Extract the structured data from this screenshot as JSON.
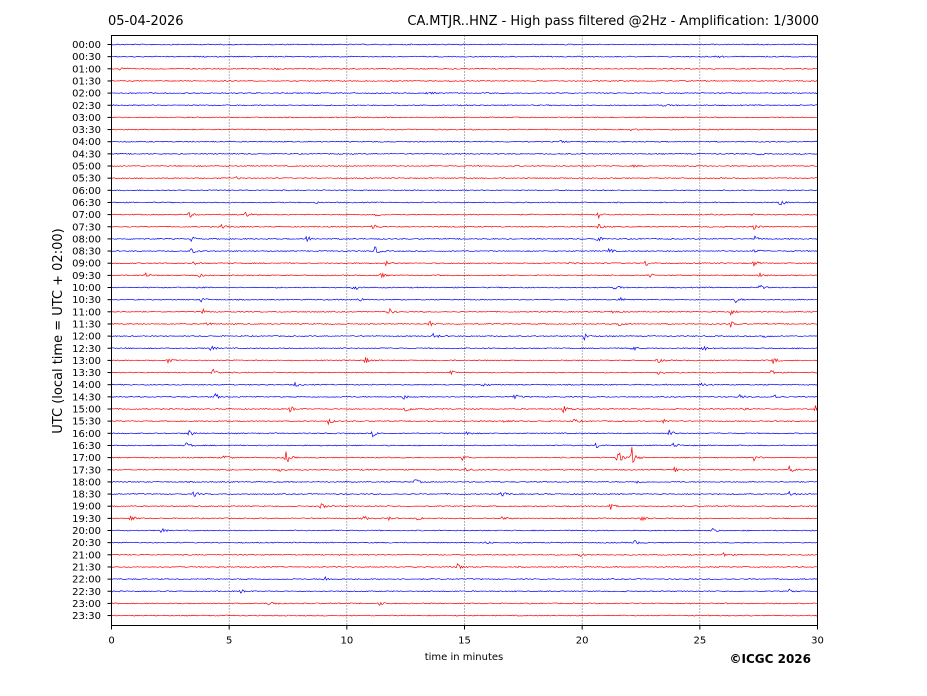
{
  "header": {
    "date": "05-04-2026",
    "title": "CA.MTJR..HNZ - High pass filtered @2Hz - Amplification: 1/3000"
  },
  "footer": {
    "copyright": "©ICGC 2026"
  },
  "chart_data": {
    "type": "line",
    "subtype": "helicorder",
    "xlabel": "time in minutes",
    "ylabel": "UTC (local time = UTC + 02:00)",
    "xlim": [
      0,
      30
    ],
    "x_ticks": [
      0,
      5,
      10,
      15,
      20,
      25,
      30
    ],
    "vertical_gridlines_at": [
      5,
      10,
      15,
      20,
      25
    ],
    "grid_style": "dotted",
    "trace_colors": [
      "#0000ff",
      "#ff0000"
    ],
    "color_pattern": "alternates blue/red by hour",
    "rows": [
      {
        "label": "00:00",
        "color": "#0000ff",
        "events": []
      },
      {
        "label": "00:30",
        "color": "#0000ff",
        "events": [
          {
            "t": 25.7,
            "a": 0.25
          }
        ]
      },
      {
        "label": "01:00",
        "color": "#ff0000",
        "events": [
          {
            "t": 0.3,
            "a": 0.35
          },
          {
            "t": 7.0,
            "a": 0.2
          }
        ]
      },
      {
        "label": "01:30",
        "color": "#ff0000",
        "events": []
      },
      {
        "label": "02:00",
        "color": "#0000ff",
        "events": [
          {
            "t": 13.4,
            "a": 0.35
          }
        ]
      },
      {
        "label": "02:30",
        "color": "#0000ff",
        "events": [
          {
            "t": 23.5,
            "a": 0.3
          }
        ]
      },
      {
        "label": "03:00",
        "color": "#ff0000",
        "events": []
      },
      {
        "label": "03:30",
        "color": "#ff0000",
        "events": [
          {
            "t": 22.1,
            "a": 0.2
          }
        ]
      },
      {
        "label": "04:00",
        "color": "#0000ff",
        "events": [
          {
            "t": 19.1,
            "a": 0.3
          }
        ]
      },
      {
        "label": "04:30",
        "color": "#0000ff",
        "events": [
          {
            "t": 27.5,
            "a": 0.2
          }
        ]
      },
      {
        "label": "05:00",
        "color": "#ff0000",
        "events": [
          {
            "t": 22.2,
            "a": 0.15
          }
        ]
      },
      {
        "label": "05:30",
        "color": "#ff0000",
        "events": [
          {
            "t": 5.3,
            "a": 0.2
          }
        ]
      },
      {
        "label": "06:00",
        "color": "#0000ff",
        "events": []
      },
      {
        "label": "06:30",
        "color": "#0000ff",
        "events": [
          {
            "t": 8.6,
            "a": 0.2
          },
          {
            "t": 28.4,
            "a": 0.7
          }
        ]
      },
      {
        "label": "07:00",
        "color": "#ff0000",
        "events": [
          {
            "t": 3.3,
            "a": 0.5
          },
          {
            "t": 5.7,
            "a": 0.5
          },
          {
            "t": 11.2,
            "a": 0.55
          },
          {
            "t": 20.7,
            "a": 0.5
          },
          {
            "t": 27.1,
            "a": 0.5
          }
        ]
      },
      {
        "label": "07:30",
        "color": "#ff0000",
        "events": [
          {
            "t": 4.7,
            "a": 0.45
          },
          {
            "t": 11.1,
            "a": 0.6
          },
          {
            "t": 20.7,
            "a": 0.5
          },
          {
            "t": 27.3,
            "a": 0.55
          }
        ]
      },
      {
        "label": "08:00",
        "color": "#0000ff",
        "events": [
          {
            "t": 3.4,
            "a": 0.45
          },
          {
            "t": 8.3,
            "a": 0.55
          },
          {
            "t": 20.6,
            "a": 0.6
          },
          {
            "t": 27.3,
            "a": 0.55
          }
        ]
      },
      {
        "label": "08:30",
        "color": "#0000ff",
        "events": [
          {
            "t": 3.4,
            "a": 0.5
          },
          {
            "t": 11.2,
            "a": 0.75
          },
          {
            "t": 21.1,
            "a": 0.55
          },
          {
            "t": 27.3,
            "a": 0.55
          }
        ]
      },
      {
        "label": "09:00",
        "color": "#ff0000",
        "events": [
          {
            "t": 3.5,
            "a": 0.4
          },
          {
            "t": 11.7,
            "a": 0.6
          },
          {
            "t": 19.5,
            "a": 0.35
          },
          {
            "t": 22.7,
            "a": 0.5
          },
          {
            "t": 27.3,
            "a": 0.5
          }
        ]
      },
      {
        "label": "09:30",
        "color": "#ff0000",
        "events": [
          {
            "t": 1.4,
            "a": 0.6
          },
          {
            "t": 3.7,
            "a": 0.4
          },
          {
            "t": 11.4,
            "a": 0.6
          },
          {
            "t": 22.8,
            "a": 0.5
          },
          {
            "t": 27.5,
            "a": 0.5
          }
        ]
      },
      {
        "label": "10:00",
        "color": "#0000ff",
        "events": [
          {
            "t": 3.7,
            "a": 0.4
          },
          {
            "t": 10.3,
            "a": 0.55
          },
          {
            "t": 21.4,
            "a": 0.55
          },
          {
            "t": 27.5,
            "a": 0.6
          }
        ]
      },
      {
        "label": "10:30",
        "color": "#0000ff",
        "events": [
          {
            "t": 3.8,
            "a": 0.45
          },
          {
            "t": 10.5,
            "a": 0.5
          },
          {
            "t": 21.6,
            "a": 0.4
          },
          {
            "t": 26.5,
            "a": 0.55
          }
        ]
      },
      {
        "label": "11:00",
        "color": "#ff0000",
        "events": [
          {
            "t": 3.9,
            "a": 0.4
          },
          {
            "t": 11.8,
            "a": 0.55
          },
          {
            "t": 21.3,
            "a": 0.4
          },
          {
            "t": 26.3,
            "a": 0.55
          }
        ]
      },
      {
        "label": "11:30",
        "color": "#ff0000",
        "events": [
          {
            "t": 4.0,
            "a": 0.45
          },
          {
            "t": 13.5,
            "a": 0.55
          },
          {
            "t": 21.6,
            "a": 0.55
          },
          {
            "t": 26.3,
            "a": 0.55
          }
        ]
      },
      {
        "label": "12:00",
        "color": "#0000ff",
        "events": [
          {
            "t": 13.7,
            "a": 0.6
          },
          {
            "t": 20.1,
            "a": 0.6
          },
          {
            "t": 27.7,
            "a": 0.45
          }
        ]
      },
      {
        "label": "12:30",
        "color": "#0000ff",
        "events": [
          {
            "t": 4.2,
            "a": 0.45
          },
          {
            "t": 22.1,
            "a": 0.6
          },
          {
            "t": 25.1,
            "a": 0.6
          }
        ]
      },
      {
        "label": "13:00",
        "color": "#ff0000",
        "events": [
          {
            "t": 2.4,
            "a": 0.4
          },
          {
            "t": 10.8,
            "a": 0.5
          },
          {
            "t": 23.2,
            "a": 0.55
          },
          {
            "t": 28.1,
            "a": 0.6
          }
        ]
      },
      {
        "label": "13:30",
        "color": "#ff0000",
        "events": [
          {
            "t": 4.3,
            "a": 0.55
          },
          {
            "t": 14.4,
            "a": 0.6
          },
          {
            "t": 23.2,
            "a": 0.55
          },
          {
            "t": 28.0,
            "a": 0.55
          }
        ]
      },
      {
        "label": "14:00",
        "color": "#0000ff",
        "events": [
          {
            "t": 7.8,
            "a": 0.4
          },
          {
            "t": 15.8,
            "a": 0.5
          },
          {
            "t": 25.0,
            "a": 0.6
          }
        ]
      },
      {
        "label": "14:30",
        "color": "#0000ff",
        "events": [
          {
            "t": 4.4,
            "a": 0.55
          },
          {
            "t": 12.4,
            "a": 0.45
          },
          {
            "t": 17.1,
            "a": 0.55
          },
          {
            "t": 26.7,
            "a": 0.45
          },
          {
            "t": 28.1,
            "a": 0.6
          }
        ]
      },
      {
        "label": "15:00",
        "color": "#ff0000",
        "events": [
          {
            "t": 7.6,
            "a": 0.55
          },
          {
            "t": 12.5,
            "a": 0.55
          },
          {
            "t": 19.2,
            "a": 0.55
          },
          {
            "t": 26.8,
            "a": 0.55
          },
          {
            "t": 29.9,
            "a": 0.6
          }
        ]
      },
      {
        "label": "15:30",
        "color": "#ff0000",
        "events": [
          {
            "t": 9.2,
            "a": 0.55
          },
          {
            "t": 16.7,
            "a": 0.45
          },
          {
            "t": 19.6,
            "a": 0.55
          },
          {
            "t": 23.4,
            "a": 0.45
          }
        ]
      },
      {
        "label": "16:00",
        "color": "#0000ff",
        "events": [
          {
            "t": 3.3,
            "a": 0.6
          },
          {
            "t": 11.1,
            "a": 0.5
          },
          {
            "t": 15.1,
            "a": 0.45
          },
          {
            "t": 23.7,
            "a": 0.55
          }
        ]
      },
      {
        "label": "16:30",
        "color": "#0000ff",
        "events": [
          {
            "t": 3.2,
            "a": 0.6
          },
          {
            "t": 20.6,
            "a": 0.55
          },
          {
            "t": 23.9,
            "a": 0.55
          }
        ]
      },
      {
        "label": "17:00",
        "color": "#ff0000",
        "events": [
          {
            "t": 4.8,
            "a": 0.55
          },
          {
            "t": 7.4,
            "a": 1.2
          },
          {
            "t": 14.9,
            "a": 0.45
          },
          {
            "t": 21.5,
            "a": 1.6
          },
          {
            "t": 22.1,
            "a": 1.9
          },
          {
            "t": 27.3,
            "a": 0.5
          }
        ]
      },
      {
        "label": "17:30",
        "color": "#ff0000",
        "events": [
          {
            "t": 7.1,
            "a": 0.6
          },
          {
            "t": 15.0,
            "a": 0.5
          },
          {
            "t": 23.9,
            "a": 0.55
          },
          {
            "t": 28.8,
            "a": 0.55
          }
        ]
      },
      {
        "label": "18:00",
        "color": "#0000ff",
        "events": [
          {
            "t": 12.9,
            "a": 0.5
          },
          {
            "t": 22.3,
            "a": 0.45
          }
        ]
      },
      {
        "label": "18:30",
        "color": "#0000ff",
        "events": [
          {
            "t": 3.5,
            "a": 0.45
          },
          {
            "t": 16.6,
            "a": 0.6
          },
          {
            "t": 28.8,
            "a": 0.55
          }
        ]
      },
      {
        "label": "19:00",
        "color": "#ff0000",
        "events": [
          {
            "t": 8.9,
            "a": 0.5
          },
          {
            "t": 21.2,
            "a": 0.55
          }
        ]
      },
      {
        "label": "19:30",
        "color": "#ff0000",
        "events": [
          {
            "t": 0.8,
            "a": 0.6
          },
          {
            "t": 10.7,
            "a": 0.5
          },
          {
            "t": 11.7,
            "a": 0.5
          },
          {
            "t": 13.0,
            "a": 0.4
          },
          {
            "t": 16.6,
            "a": 0.45
          },
          {
            "t": 22.5,
            "a": 0.55
          }
        ]
      },
      {
        "label": "20:00",
        "color": "#0000ff",
        "events": [
          {
            "t": 2.1,
            "a": 0.4
          },
          {
            "t": 25.5,
            "a": 0.4
          }
        ]
      },
      {
        "label": "20:30",
        "color": "#0000ff",
        "events": [
          {
            "t": 15.9,
            "a": 0.3
          },
          {
            "t": 22.2,
            "a": 0.45
          }
        ]
      },
      {
        "label": "21:00",
        "color": "#ff0000",
        "events": [
          {
            "t": 19.9,
            "a": 0.35
          },
          {
            "t": 26.0,
            "a": 0.35
          }
        ]
      },
      {
        "label": "21:30",
        "color": "#ff0000",
        "events": [
          {
            "t": 14.7,
            "a": 0.6
          }
        ]
      },
      {
        "label": "22:00",
        "color": "#0000ff",
        "events": [
          {
            "t": 9.0,
            "a": 0.6
          }
        ]
      },
      {
        "label": "22:30",
        "color": "#0000ff",
        "events": [
          {
            "t": 5.5,
            "a": 0.3
          },
          {
            "t": 28.8,
            "a": 0.3
          }
        ]
      },
      {
        "label": "23:00",
        "color": "#ff0000",
        "events": [
          {
            "t": 6.7,
            "a": 0.75
          },
          {
            "t": 11.4,
            "a": 0.35
          }
        ]
      },
      {
        "label": "23:30",
        "color": "#ff0000",
        "events": []
      }
    ]
  }
}
